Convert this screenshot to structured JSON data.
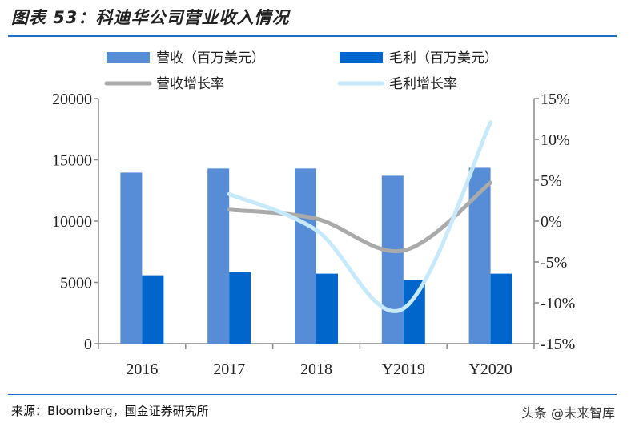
{
  "title": "图表 53：科迪华公司营业收入情况",
  "source": "来源：Bloomberg，国金证券研究所",
  "watermark": "头条 @未来智库",
  "chart_data": {
    "type": "bar",
    "categories": [
      "2016",
      "2017",
      "2018",
      "Y2019",
      "Y2020"
    ],
    "series": [
      {
        "name": "营收（百万美元）",
        "type": "bar",
        "axis": "left",
        "color": "#568dd6",
        "values": [
          13960,
          14290,
          14290,
          13700,
          14350
        ]
      },
      {
        "name": "毛利（百万美元）",
        "type": "bar",
        "axis": "left",
        "color": "#0066cc",
        "values": [
          5580,
          5840,
          5710,
          5190,
          5710
        ]
      },
      {
        "name": "营收增长率",
        "type": "line",
        "axis": "right",
        "color": "#aaaaaa",
        "values": [
          null,
          1.4,
          0.3,
          -3.6,
          4.7
        ]
      },
      {
        "name": "毛利增长率",
        "type": "line",
        "axis": "right",
        "color": "#c6eafc",
        "values": [
          null,
          3.3,
          -1.1,
          -10.7,
          12.1
        ]
      }
    ],
    "y_left": {
      "range": [
        0,
        20000
      ],
      "ticks": [
        "0",
        "5000",
        "10000",
        "15000",
        "20000"
      ]
    },
    "y_right": {
      "range": [
        -15,
        15
      ],
      "unit": "%",
      "ticks": [
        "-15%",
        "-10%",
        "-5%",
        "0%",
        "5%",
        "10%",
        "15%"
      ]
    },
    "legend": "top",
    "grid": false
  }
}
